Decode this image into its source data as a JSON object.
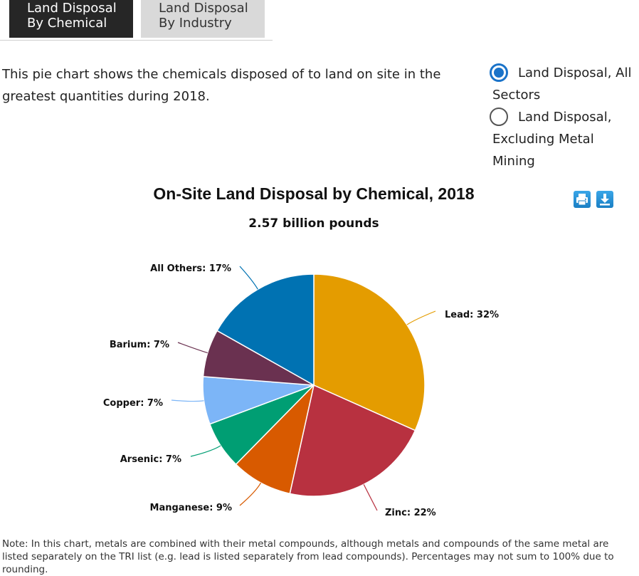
{
  "tabs": [
    {
      "line1": "Land Disposal",
      "line2": "By Chemical",
      "active": true
    },
    {
      "line1": "Land Disposal",
      "line2": "By Industry",
      "active": false
    }
  ],
  "intro": "This pie chart shows the chemicals disposed of to land on site in the greatest quantities during 2018.",
  "radios": [
    {
      "label": "Land Disposal, All Sectors",
      "checked": true
    },
    {
      "label": "Land Disposal, Excluding Metal Mining",
      "checked": false
    }
  ],
  "icons": {
    "print": "print-icon",
    "download": "download-icon"
  },
  "chart_data": {
    "type": "pie",
    "title": "On-Site Land Disposal by Chemical, 2018",
    "subtitle": "2.57 billion pounds",
    "slices": [
      {
        "label": "Lead",
        "value": 32,
        "color": "#e49c00"
      },
      {
        "label": "Zinc",
        "value": 22,
        "color": "#b83140"
      },
      {
        "label": "Manganese",
        "value": 9,
        "color": "#d85a00"
      },
      {
        "label": "Arsenic",
        "value": 7,
        "color": "#009e73"
      },
      {
        "label": "Copper",
        "value": 7,
        "color": "#7cb5f7"
      },
      {
        "label": "Barium",
        "value": 7,
        "color": "#6a3150"
      },
      {
        "label": "All Others",
        "value": 17,
        "color": "#0072b2"
      }
    ]
  },
  "note": "Note: In this chart, metals are combined with their metal compounds, although metals and compounds of the same metal are listed separately on the TRI list (e.g. lead is listed separately from lead compounds). Percentages may not sum to 100% due to rounding."
}
